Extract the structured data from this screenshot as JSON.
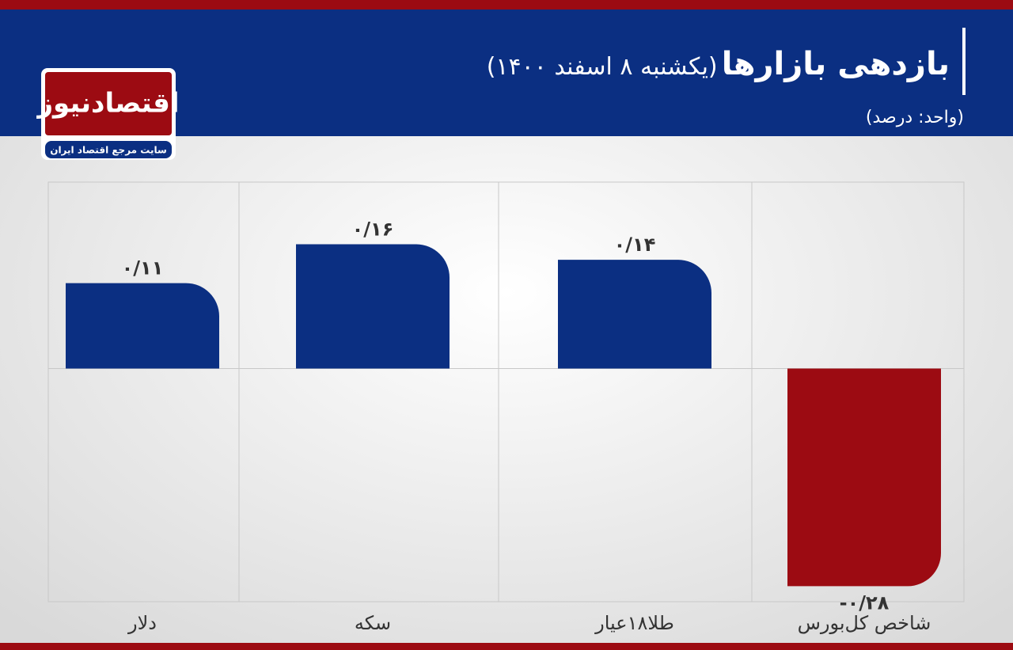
{
  "logo": {
    "name": "اقتصادنیوز",
    "tagline": "سایت مرجع اقتصاد ایران"
  },
  "chart_data": {
    "type": "bar",
    "title": "بازدهی بازارها",
    "subtitle": "(یکشنبه ۸ اسفند ۱۴۰۰)",
    "unit": "(واحد: درصد)",
    "categories": [
      "دلار",
      "سکه",
      "طلا۱۸عیار",
      "شاخص کل‌بورس"
    ],
    "values": [
      0.11,
      0.16,
      0.14,
      -0.28
    ],
    "value_labels": [
      "۰/۱۱",
      "۰/۱۶",
      "۰/۱۴",
      "-۰/۲۸"
    ],
    "colors": [
      "#0b2f82",
      "#0b2f82",
      "#0b2f82",
      "#9c0b12"
    ],
    "ylim": [
      -0.3,
      0.24
    ]
  }
}
